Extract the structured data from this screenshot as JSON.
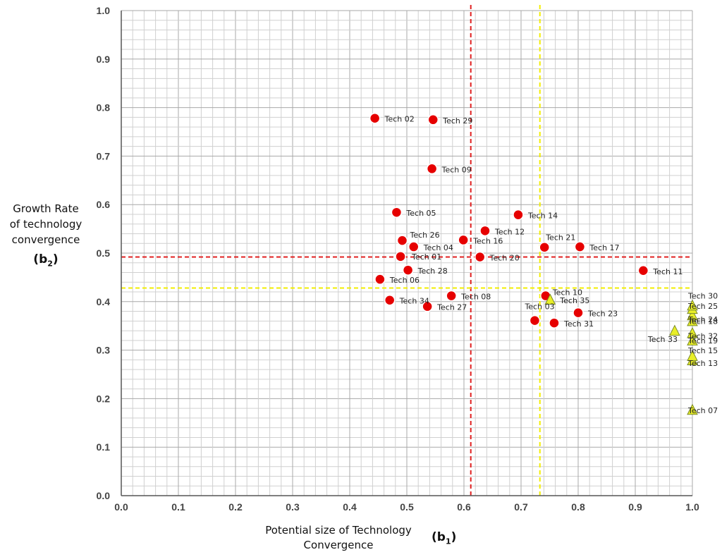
{
  "chart_data": {
    "type": "scatter",
    "title": "",
    "xlabel": "Potential size of  Technology Convergence",
    "xlabel_symbol": "b",
    "xlabel_symbol_sub": "1",
    "ylabel_lines": [
      "Growth Rate",
      "of technology",
      "convergence"
    ],
    "ylabel_symbol": "b",
    "ylabel_symbol_sub": "2",
    "xlim": [
      0.0,
      1.0
    ],
    "ylim": [
      0.0,
      1.0
    ],
    "grid": true,
    "x_ticks": [
      "0.0",
      "0.1",
      "0.2",
      "0.3",
      "0.4",
      "0.5",
      "0.6",
      "0.7",
      "0.8",
      "0.9",
      "1.0"
    ],
    "y_ticks": [
      "0.0",
      "0.1",
      "0.2",
      "0.3",
      "0.4",
      "0.5",
      "0.6",
      "0.7",
      "0.8",
      "0.9",
      "1.0"
    ],
    "reference_lines": [
      {
        "orientation": "vertical",
        "value": 0.612,
        "color": "#e02020"
      },
      {
        "orientation": "horizontal",
        "value": 0.492,
        "color": "#e02020"
      },
      {
        "orientation": "vertical",
        "value": 0.733,
        "color": "#f2ee00"
      },
      {
        "orientation": "horizontal",
        "value": 0.428,
        "color": "#f2ee00"
      }
    ],
    "series": [
      {
        "name": "circle",
        "marker": "circle",
        "color": "#e60000",
        "points": [
          {
            "label": "Tech 01",
            "x": 0.489,
            "y": 0.493
          },
          {
            "label": "Tech 02",
            "x": 0.444,
            "y": 0.778
          },
          {
            "label": "Tech 03",
            "x": 0.724,
            "y": 0.361
          },
          {
            "label": "Tech 04",
            "x": 0.512,
            "y": 0.513
          },
          {
            "label": "Tech 05",
            "x": 0.482,
            "y": 0.584
          },
          {
            "label": "Tech 06",
            "x": 0.453,
            "y": 0.446
          },
          {
            "label": "Tech 08",
            "x": 0.578,
            "y": 0.412
          },
          {
            "label": "Tech 09",
            "x": 0.544,
            "y": 0.674
          },
          {
            "label": "Tech 10",
            "x": 0.743,
            "y": 0.412
          },
          {
            "label": "Tech 11",
            "x": 0.914,
            "y": 0.464
          },
          {
            "label": "Tech 12",
            "x": 0.637,
            "y": 0.546
          },
          {
            "label": "Tech 14",
            "x": 0.695,
            "y": 0.579
          },
          {
            "label": "Tech 16",
            "x": 0.599,
            "y": 0.527
          },
          {
            "label": "Tech 17",
            "x": 0.803,
            "y": 0.513
          },
          {
            "label": "Tech 20",
            "x": 0.628,
            "y": 0.492
          },
          {
            "label": "Tech 21",
            "x": 0.741,
            "y": 0.512
          },
          {
            "label": "Tech 23",
            "x": 0.8,
            "y": 0.377
          },
          {
            "label": "Tech 26",
            "x": 0.492,
            "y": 0.526
          },
          {
            "label": "Tech 27",
            "x": 0.536,
            "y": 0.39
          },
          {
            "label": "Tech 28",
            "x": 0.502,
            "y": 0.465
          },
          {
            "label": "Tech 29",
            "x": 0.546,
            "y": 0.775
          },
          {
            "label": "Tech 31",
            "x": 0.758,
            "y": 0.356
          },
          {
            "label": "Tech 34",
            "x": 0.47,
            "y": 0.403
          }
        ]
      },
      {
        "name": "triangle",
        "marker": "triangle",
        "color": "#e8ee28",
        "points": [
          {
            "label": "Tech 07",
            "x": 1.0,
            "y": 0.177
          },
          {
            "label": "Tech 13",
            "x": 1.0,
            "y": 0.279
          },
          {
            "label": "Tech 15",
            "x": 1.0,
            "y": 0.288
          },
          {
            "label": "Tech 18",
            "x": 1.0,
            "y": 0.36
          },
          {
            "label": "Tech 19",
            "x": 1.0,
            "y": 0.32
          },
          {
            "label": "Tech 24",
            "x": 1.0,
            "y": 0.372
          },
          {
            "label": "Tech 25",
            "x": 1.0,
            "y": 0.385
          },
          {
            "label": "Tech 30",
            "x": 1.0,
            "y": 0.392
          },
          {
            "label": "Tech 32",
            "x": 1.0,
            "y": 0.335
          },
          {
            "label": "Tech 33",
            "x": 0.969,
            "y": 0.34
          },
          {
            "label": "Tech 35",
            "x": 0.751,
            "y": 0.404
          }
        ]
      }
    ]
  }
}
